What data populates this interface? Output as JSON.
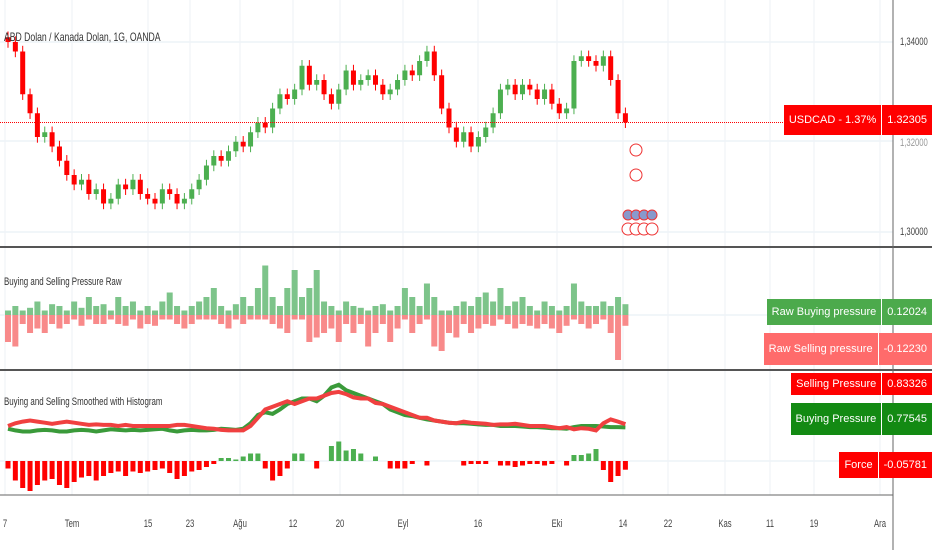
{
  "chart_title": "ABD Dolan / Kanada Dolan, 1G, OANDA",
  "price_axis": [
    "1,34000",
    "1,32000",
    "1,30000"
  ],
  "price_tag": {
    "label": "USDCAD - 1.37%",
    "value": "1.32305",
    "color": "#ff0000"
  },
  "panels": {
    "raw": {
      "title": "Buying and Selling Pressure Raw",
      "buy_label": "Raw Buying pressure",
      "buy_value": "0.12024",
      "sell_label": "Raw Selling pressure",
      "sell_value": "-0.12230"
    },
    "smooth": {
      "title": "Buying and Selling Smoothed with Histogram",
      "sell_label": "Selling Pressure",
      "sell_value": "0.83326",
      "buy_label": "Buying Pressure",
      "buy_value": "0.77545",
      "force_label": "Force",
      "force_value": "-0.05781"
    }
  },
  "time_axis": [
    "7",
    "Tem",
    "15",
    "23",
    "Ağu",
    "12",
    "20",
    "Eyl",
    "16",
    "Eki",
    "14",
    "22",
    "Kas",
    "11",
    "19",
    "Ara"
  ],
  "colors": {
    "up": "#4caf50",
    "down": "#ff0000",
    "raw_up": "#7dc48a",
    "raw_down": "#f88a8a"
  },
  "candles_close": [
    1.34,
    1.338,
    1.329,
    1.325,
    1.32,
    1.321,
    1.318,
    1.315,
    1.312,
    1.31,
    1.311,
    1.308,
    1.309,
    1.306,
    1.307,
    1.31,
    1.309,
    1.311,
    1.308,
    1.307,
    1.306,
    1.309,
    1.308,
    1.306,
    1.307,
    1.309,
    1.311,
    1.314,
    1.316,
    1.315,
    1.317,
    1.319,
    1.318,
    1.321,
    1.323,
    1.322,
    1.326,
    1.329,
    1.328,
    1.33,
    1.335,
    1.331,
    1.332,
    1.329,
    1.327,
    1.33,
    1.334,
    1.331,
    1.332,
    1.333,
    1.331,
    1.329,
    1.33,
    1.332,
    1.334,
    1.333,
    1.336,
    1.338,
    1.333,
    1.326,
    1.322,
    1.319,
    1.321,
    1.318,
    1.32,
    1.322,
    1.325,
    1.33,
    1.331,
    1.329,
    1.331,
    1.33,
    1.328,
    1.33,
    1.327,
    1.325,
    1.326,
    1.336,
    1.337,
    1.336,
    1.335,
    1.337,
    1.332,
    1.325,
    1.3231
  ],
  "raw_buy": [
    0.05,
    0.1,
    0.05,
    0.08,
    0.15,
    0.05,
    0.12,
    0.1,
    0.05,
    0.15,
    0.08,
    0.2,
    0.1,
    0.12,
    0.05,
    0.2,
    0.1,
    0.15,
    0.05,
    0.1,
    0.05,
    0.15,
    0.25,
    0.1,
    0.05,
    0.1,
    0.15,
    0.2,
    0.3,
    0.1,
    0.05,
    0.12,
    0.2,
    0.1,
    0.3,
    0.55,
    0.2,
    0.1,
    0.3,
    0.5,
    0.2,
    0.3,
    0.5,
    0.15,
    0.1,
    0.05,
    0.15,
    0.1,
    0.08,
    0.05,
    0.1,
    0.12,
    0.05,
    0.1,
    0.3,
    0.2,
    0.1,
    0.35,
    0.2,
    0.05,
    0.05,
    0.1,
    0.15,
    0.1,
    0.2,
    0.25,
    0.15,
    0.3,
    0.1,
    0.15,
    0.2,
    0.1,
    0.05,
    0.15,
    0.1,
    0.05,
    0.1,
    0.35,
    0.15,
    0.1,
    0.1,
    0.15,
    0.1,
    0.2,
    0.12
  ],
  "raw_sell": [
    0.3,
    0.35,
    0.1,
    0.2,
    0.15,
    0.2,
    0.1,
    0.15,
    0.1,
    0.05,
    0.12,
    0.05,
    0.1,
    0.1,
    0.05,
    0.1,
    0.12,
    0.05,
    0.15,
    0.1,
    0.12,
    0.05,
    0.05,
    0.1,
    0.15,
    0.1,
    0.05,
    0.05,
    0.05,
    0.1,
    0.15,
    0.05,
    0.1,
    0.05,
    0.05,
    0.05,
    0.1,
    0.15,
    0.2,
    0.05,
    0.05,
    0.3,
    0.25,
    0.2,
    0.15,
    0.3,
    0.1,
    0.2,
    0.1,
    0.35,
    0.2,
    0.1,
    0.3,
    0.15,
    0.05,
    0.2,
    0.1,
    0.05,
    0.35,
    0.4,
    0.2,
    0.25,
    0.1,
    0.2,
    0.15,
    0.1,
    0.12,
    0.05,
    0.1,
    0.15,
    0.1,
    0.12,
    0.15,
    0.1,
    0.15,
    0.2,
    0.12,
    0.05,
    0.1,
    0.15,
    0.1,
    0.05,
    0.2,
    0.5,
    0.12
  ],
  "smooth_buy": [
    0.75,
    0.72,
    0.7,
    0.7,
    0.72,
    0.73,
    0.72,
    0.7,
    0.7,
    0.72,
    0.73,
    0.72,
    0.7,
    0.72,
    0.74,
    0.73,
    0.72,
    0.73,
    0.72,
    0.73,
    0.74,
    0.75,
    0.72,
    0.7,
    0.72,
    0.73,
    0.72,
    0.72,
    0.73,
    0.75,
    0.74,
    0.73,
    0.75,
    0.85,
    1.0,
    1.05,
    1.02,
    1.1,
    1.2,
    1.25,
    1.3,
    1.3,
    1.25,
    1.35,
    1.5,
    1.55,
    1.45,
    1.4,
    1.35,
    1.3,
    1.25,
    1.2,
    1.1,
    1.05,
    1.0,
    0.98,
    0.95,
    0.92,
    0.9,
    0.88,
    0.86,
    0.85,
    0.85,
    0.84,
    0.83,
    0.82,
    0.82,
    0.8,
    0.8,
    0.8,
    0.79,
    0.78,
    0.78,
    0.77,
    0.76,
    0.76,
    0.75,
    0.78,
    0.8,
    0.8,
    0.8,
    0.79,
    0.78,
    0.78,
    0.775
  ],
  "smooth_sell": [
    0.8,
    0.85,
    0.88,
    0.9,
    0.88,
    0.86,
    0.84,
    0.86,
    0.88,
    0.86,
    0.84,
    0.82,
    0.83,
    0.82,
    0.82,
    0.8,
    0.82,
    0.8,
    0.8,
    0.8,
    0.8,
    0.8,
    0.8,
    0.82,
    0.82,
    0.8,
    0.78,
    0.76,
    0.75,
    0.73,
    0.72,
    0.72,
    0.72,
    0.8,
    0.95,
    1.1,
    1.15,
    1.2,
    1.25,
    1.2,
    1.25,
    1.3,
    1.3,
    1.35,
    1.4,
    1.42,
    1.38,
    1.32,
    1.3,
    1.3,
    1.22,
    1.2,
    1.15,
    1.1,
    1.05,
    1.0,
    0.95,
    0.95,
    0.9,
    0.88,
    0.86,
    0.85,
    0.88,
    0.86,
    0.85,
    0.84,
    0.82,
    0.83,
    0.83,
    0.84,
    0.82,
    0.8,
    0.8,
    0.8,
    0.78,
    0.76,
    0.78,
    0.74,
    0.76,
    0.75,
    0.72,
    0.85,
    0.92,
    0.88,
    0.833
  ]
}
